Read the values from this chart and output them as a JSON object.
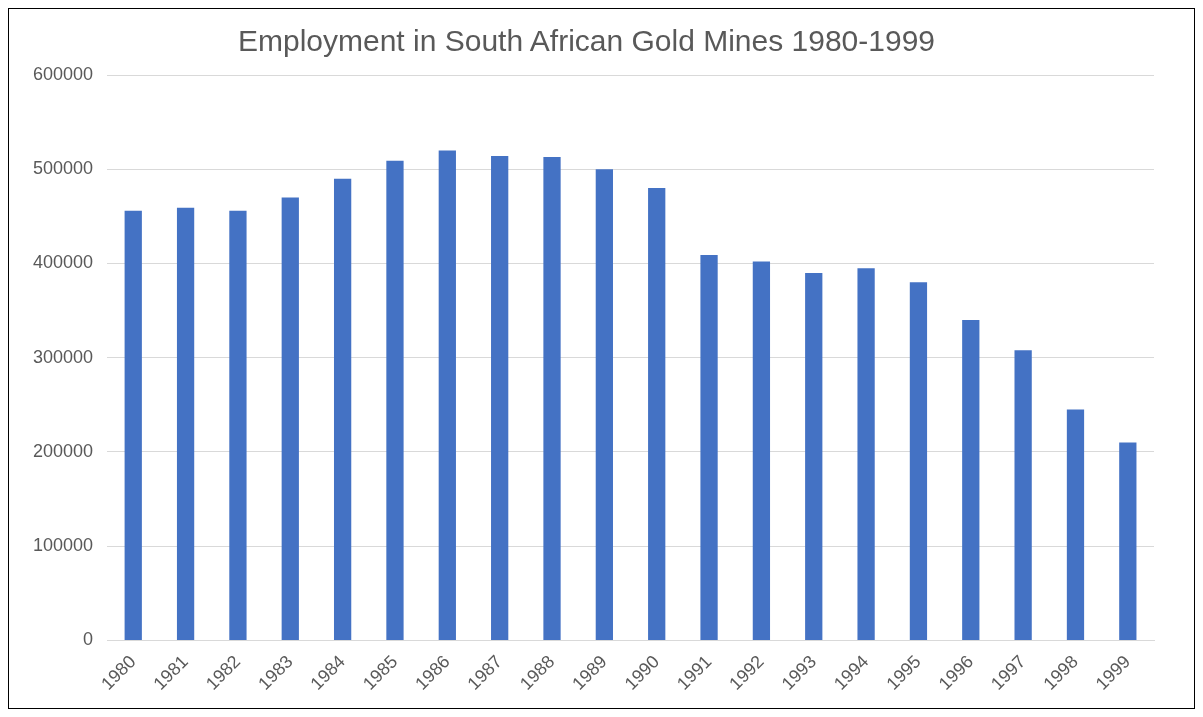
{
  "chart_data": {
    "type": "bar",
    "title": "Employment in South African Gold Mines 1980-1999",
    "categories": [
      "1980",
      "1981",
      "1982",
      "1983",
      "1984",
      "1985",
      "1986",
      "1987",
      "1988",
      "1989",
      "1990",
      "1991",
      "1992",
      "1993",
      "1994",
      "1995",
      "1996",
      "1997",
      "1998",
      "1999"
    ],
    "values": [
      456000,
      459000,
      456000,
      470000,
      490000,
      509000,
      520000,
      514000,
      513000,
      500000,
      480000,
      409000,
      402000,
      390000,
      395000,
      380000,
      340000,
      308000,
      245000,
      210000
    ],
    "color": "#4472c4",
    "ylim": [
      0,
      600000
    ],
    "yticks": [
      0,
      100000,
      200000,
      300000,
      400000,
      500000,
      600000
    ],
    "grid": "y",
    "legend": false
  }
}
